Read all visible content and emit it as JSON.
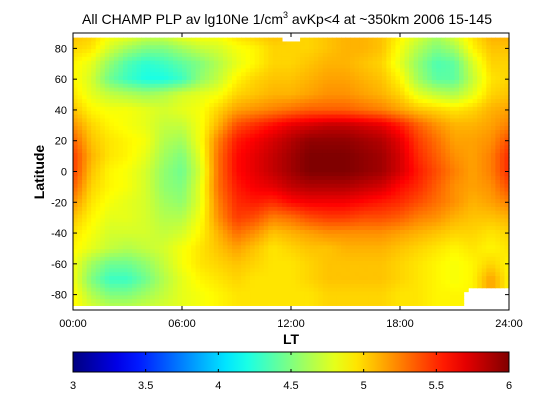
{
  "chart_data": {
    "type": "heatmap",
    "title_main": "All CHAMP PLP av lg10Ne 1/cm",
    "title_sup": "3",
    "title_rest": " avKp<4 at ~350km 2006 15-145",
    "xlabel": "LT",
    "ylabel": "Latitude",
    "xlim": [
      0,
      24
    ],
    "ylim": [
      -90,
      90
    ],
    "x_ticks": [
      {
        "value": 0,
        "label": "00:00"
      },
      {
        "value": 6,
        "label": "06:00"
      },
      {
        "value": 12,
        "label": "12:00"
      },
      {
        "value": 18,
        "label": "18:00"
      },
      {
        "value": 24,
        "label": "24:00"
      }
    ],
    "y_ticks": [
      {
        "value": 80,
        "label": "80"
      },
      {
        "value": 60,
        "label": "60"
      },
      {
        "value": 40,
        "label": "40"
      },
      {
        "value": 20,
        "label": "20"
      },
      {
        "value": 0,
        "label": "0"
      },
      {
        "value": -20,
        "label": "-20"
      },
      {
        "value": -40,
        "label": "-40"
      },
      {
        "value": -60,
        "label": "-60"
      },
      {
        "value": -80,
        "label": "-80"
      }
    ],
    "colorbar": {
      "range": [
        3,
        6
      ],
      "colormap": "jet",
      "ticks": [
        {
          "value": 3,
          "label": "3"
        },
        {
          "value": 3.5,
          "label": "3.5"
        },
        {
          "value": 4,
          "label": "4"
        },
        {
          "value": 4.5,
          "label": "4.5"
        },
        {
          "value": 5,
          "label": "5"
        },
        {
          "value": 5.5,
          "label": "5.5"
        },
        {
          "value": 6,
          "label": "6"
        }
      ]
    },
    "grid": false,
    "lt_values": [
      0,
      1,
      2,
      3,
      4,
      5,
      6,
      7,
      8,
      9,
      10,
      11,
      12,
      13,
      14,
      15,
      16,
      17,
      18,
      19,
      20,
      21,
      22,
      23,
      24
    ],
    "lat_values": [
      87,
      80,
      70,
      60,
      50,
      40,
      30,
      20,
      10,
      0,
      -10,
      -20,
      -30,
      -40,
      -50,
      -60,
      -70,
      -80,
      -87
    ],
    "z_values": [
      [
        5.05,
        5.0,
        4.85,
        4.8,
        4.7,
        4.7,
        4.8,
        4.85,
        4.85,
        4.95,
        5.0,
        5.05,
        null,
        5.0,
        5.05,
        5.1,
        5.1,
        5.05,
        4.9,
        4.75,
        4.6,
        4.75,
        4.95,
        5.1,
        5.1
      ],
      [
        5.0,
        4.95,
        4.75,
        4.6,
        4.5,
        4.5,
        4.6,
        4.7,
        4.75,
        4.85,
        4.9,
        5.0,
        5.0,
        5.0,
        5.05,
        5.1,
        5.1,
        5.05,
        4.85,
        4.65,
        4.5,
        4.6,
        4.9,
        5.05,
        5.05
      ],
      [
        4.9,
        4.8,
        4.55,
        4.35,
        4.25,
        4.3,
        4.4,
        4.5,
        4.65,
        4.8,
        4.9,
        5.0,
        5.0,
        5.05,
        5.1,
        5.1,
        5.05,
        5.0,
        4.8,
        4.55,
        4.35,
        4.4,
        4.75,
        5.0,
        5.0
      ],
      [
        4.9,
        4.75,
        4.45,
        4.3,
        4.2,
        4.2,
        4.3,
        4.55,
        4.7,
        4.9,
        5.0,
        5.05,
        5.05,
        5.1,
        5.15,
        5.15,
        5.1,
        5.05,
        4.9,
        4.6,
        4.4,
        4.4,
        4.7,
        4.95,
        5.0
      ],
      [
        4.95,
        4.8,
        4.7,
        4.65,
        4.6,
        4.65,
        4.75,
        4.8,
        4.85,
        5.0,
        5.05,
        5.1,
        5.1,
        5.15,
        5.2,
        5.2,
        5.15,
        5.1,
        5.0,
        4.8,
        4.7,
        4.65,
        4.8,
        5.0,
        5.05
      ],
      [
        5.05,
        4.9,
        4.85,
        4.85,
        4.8,
        4.75,
        4.8,
        4.85,
        5.0,
        5.15,
        5.2,
        5.25,
        5.3,
        5.35,
        5.35,
        5.35,
        5.3,
        5.25,
        5.15,
        5.05,
        5.0,
        4.95,
        5.0,
        5.1,
        5.15
      ],
      [
        5.2,
        5.0,
        4.9,
        4.85,
        4.8,
        4.7,
        4.7,
        4.85,
        5.1,
        5.4,
        5.5,
        5.6,
        5.7,
        5.75,
        5.8,
        5.8,
        5.75,
        5.7,
        5.55,
        5.35,
        5.2,
        5.1,
        5.1,
        5.15,
        5.25
      ],
      [
        5.35,
        5.05,
        4.95,
        4.9,
        4.85,
        4.65,
        4.6,
        4.85,
        5.25,
        5.55,
        5.65,
        5.75,
        5.85,
        5.95,
        5.95,
        5.95,
        5.9,
        5.85,
        5.7,
        5.45,
        5.3,
        5.15,
        5.15,
        5.2,
        5.4
      ],
      [
        5.45,
        5.1,
        4.95,
        4.9,
        4.8,
        4.6,
        4.5,
        4.8,
        5.3,
        5.6,
        5.7,
        5.8,
        5.9,
        6.0,
        6.0,
        6.0,
        5.95,
        5.9,
        5.75,
        5.5,
        5.35,
        5.2,
        5.15,
        5.25,
        5.5
      ],
      [
        5.45,
        5.05,
        4.9,
        4.85,
        4.75,
        4.55,
        4.45,
        4.75,
        5.3,
        5.6,
        5.7,
        5.8,
        5.9,
        6.0,
        6.0,
        6.0,
        5.95,
        5.9,
        5.75,
        5.55,
        5.4,
        5.25,
        5.15,
        5.25,
        5.5
      ],
      [
        5.35,
        5.0,
        4.9,
        4.85,
        4.75,
        4.55,
        4.5,
        4.8,
        5.3,
        5.55,
        5.65,
        5.7,
        5.8,
        5.85,
        5.85,
        5.85,
        5.8,
        5.75,
        5.6,
        5.5,
        5.35,
        5.2,
        5.15,
        5.2,
        5.4
      ],
      [
        5.2,
        4.95,
        4.85,
        4.8,
        4.75,
        4.6,
        4.55,
        4.8,
        5.25,
        5.5,
        5.55,
        5.5,
        5.6,
        5.65,
        5.65,
        5.65,
        5.6,
        5.55,
        5.5,
        5.4,
        5.3,
        5.2,
        5.1,
        5.15,
        5.25
      ],
      [
        5.05,
        4.9,
        4.8,
        4.8,
        4.75,
        4.65,
        4.65,
        4.85,
        5.2,
        5.45,
        5.4,
        5.25,
        5.3,
        5.4,
        5.45,
        5.45,
        5.4,
        5.4,
        5.35,
        5.25,
        5.2,
        5.1,
        5.05,
        5.05,
        5.1
      ],
      [
        4.95,
        4.85,
        4.75,
        4.75,
        4.75,
        4.7,
        4.75,
        4.9,
        5.1,
        5.3,
        5.2,
        5.05,
        5.1,
        5.15,
        5.2,
        5.2,
        5.2,
        5.2,
        5.15,
        5.1,
        5.05,
        5.0,
        5.0,
        4.95,
        5.0
      ],
      [
        4.9,
        4.8,
        4.7,
        4.65,
        4.7,
        4.75,
        4.85,
        4.95,
        5.05,
        5.15,
        5.05,
        4.95,
        5.0,
        5.05,
        5.05,
        5.1,
        5.1,
        5.1,
        5.05,
        5.0,
        4.95,
        4.9,
        4.95,
        4.9,
        4.95
      ],
      [
        4.85,
        4.6,
        4.45,
        4.45,
        4.55,
        4.7,
        4.85,
        4.95,
        5.0,
        5.05,
        5.0,
        4.95,
        4.95,
        5.0,
        5.05,
        5.05,
        5.05,
        5.05,
        5.0,
        4.95,
        4.9,
        4.85,
        4.9,
        5.0,
        4.9
      ],
      [
        4.85,
        4.5,
        4.3,
        4.3,
        4.45,
        4.65,
        4.8,
        4.9,
        4.95,
        5.0,
        4.95,
        4.95,
        4.95,
        5.0,
        5.05,
        5.05,
        5.05,
        5.05,
        5.0,
        4.95,
        4.9,
        4.85,
        4.9,
        5.15,
        4.9
      ],
      [
        4.9,
        4.65,
        4.5,
        4.5,
        4.6,
        4.7,
        4.8,
        4.85,
        4.9,
        4.95,
        4.95,
        4.95,
        4.95,
        4.95,
        5.0,
        5.0,
        5.0,
        5.0,
        4.95,
        4.95,
        4.9,
        4.9,
        null,
        null,
        null
      ],
      [
        4.9,
        4.75,
        4.65,
        4.65,
        4.7,
        4.75,
        4.8,
        4.85,
        4.9,
        4.95,
        4.95,
        4.95,
        4.95,
        4.95,
        5.0,
        5.0,
        5.0,
        5.0,
        4.95,
        4.95,
        4.9,
        4.9,
        null,
        null,
        null
      ]
    ]
  }
}
